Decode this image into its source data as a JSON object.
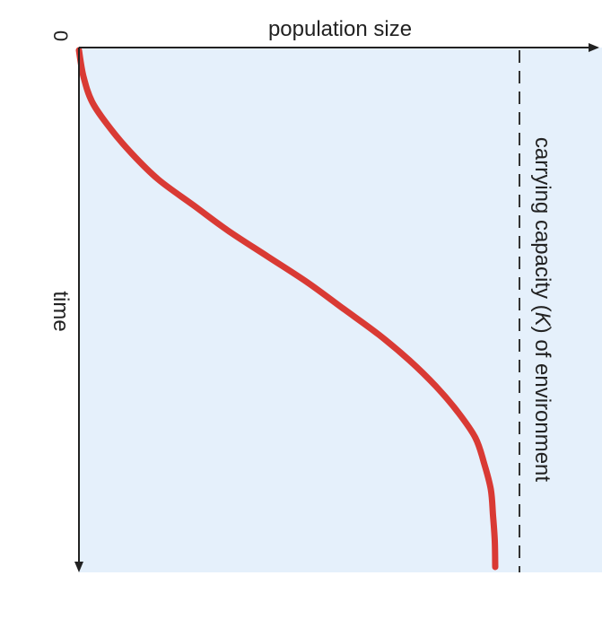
{
  "chart_data": {
    "type": "line",
    "orientation": "rotated-90",
    "xlabel": "time",
    "ylabel": "population size",
    "origin_label": "0",
    "grid": false,
    "series": [
      {
        "values": [
          {
            "t": 0.0,
            "n": 0.0
          },
          {
            "t": 0.05,
            "n": 0.01
          },
          {
            "t": 0.1,
            "n": 0.03
          },
          {
            "t": 0.15,
            "n": 0.07
          },
          {
            "t": 0.2,
            "n": 0.12
          },
          {
            "t": 0.25,
            "n": 0.18
          },
          {
            "t": 0.3,
            "n": 0.26
          },
          {
            "t": 0.35,
            "n": 0.34
          },
          {
            "t": 0.4,
            "n": 0.43
          },
          {
            "t": 0.45,
            "n": 0.52
          },
          {
            "t": 0.5,
            "n": 0.6
          },
          {
            "t": 0.55,
            "n": 0.68
          },
          {
            "t": 0.6,
            "n": 0.75
          },
          {
            "t": 0.65,
            "n": 0.81
          },
          {
            "t": 0.7,
            "n": 0.86
          },
          {
            "t": 0.75,
            "n": 0.9
          },
          {
            "t": 0.8,
            "n": 0.92
          },
          {
            "t": 0.85,
            "n": 0.935
          },
          {
            "t": 0.9,
            "n": 0.94
          },
          {
            "t": 0.95,
            "n": 0.944
          },
          {
            "t": 1.0,
            "n": 0.945
          }
        ]
      }
    ],
    "reference_line": {
      "value": 1.0,
      "style": "dashed",
      "label_parts": [
        "carrying capacity (",
        "K",
        ") of environment"
      ]
    },
    "colors": {
      "plot_background": "#e5f0fb",
      "curve": "#d93a34",
      "axis": "#222222",
      "reference": "#333333"
    }
  }
}
